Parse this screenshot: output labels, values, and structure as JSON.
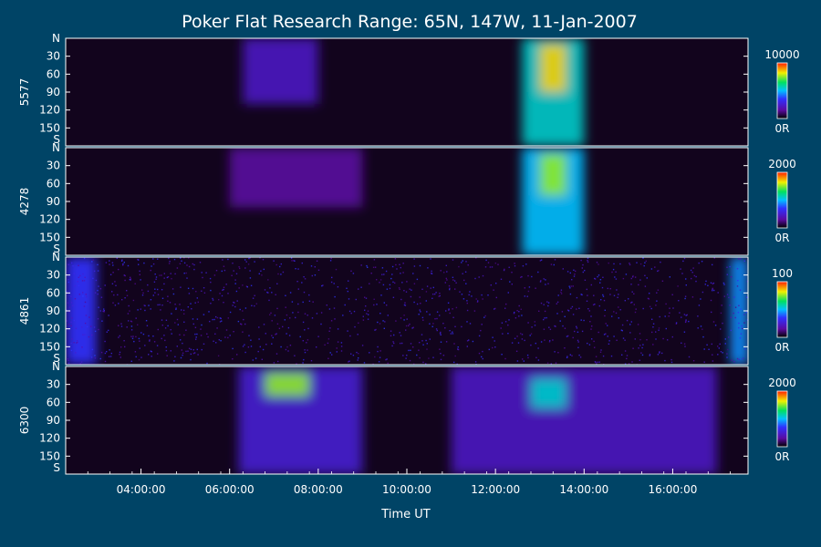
{
  "chart_data": {
    "type": "heatmap",
    "title": "Poker Flat Research Range: 65N, 147W, 11-Jan-2007",
    "xlabel": "Time UT",
    "x_ticks": [
      "04:00:00",
      "06:00:00",
      "08:00:00",
      "10:00:00",
      "12:00:00",
      "14:00:00",
      "16:00:00"
    ],
    "x_tick_hours": [
      4,
      6,
      8,
      10,
      12,
      14,
      16
    ],
    "xlim_hours": [
      2.3,
      17.7
    ],
    "y_ticks": [
      "N",
      "30",
      "60",
      "90",
      "120",
      "150",
      "S"
    ],
    "ylim_degrees": [
      0,
      180
    ],
    "panels": [
      {
        "ylabel": "5577",
        "colorbar_max": "10000",
        "colorbar_min": "0R",
        "aurora_events": [
          {
            "t_start": 6.3,
            "t_end": 8.0,
            "y_start": 0,
            "y_end": 110,
            "intensity": 0.22
          },
          {
            "t_start": 12.6,
            "t_end": 14.0,
            "y_start": 0,
            "y_end": 180,
            "intensity": 0.55
          },
          {
            "t_start": 13.0,
            "t_end": 13.6,
            "y_start": 10,
            "y_end": 90,
            "intensity": 0.85
          }
        ]
      },
      {
        "ylabel": "4278",
        "colorbar_max": "2000",
        "colorbar_min": "0R",
        "aurora_events": [
          {
            "t_start": 6.0,
            "t_end": 9.0,
            "y_start": 0,
            "y_end": 100,
            "intensity": 0.15
          },
          {
            "t_start": 12.6,
            "t_end": 14.0,
            "y_start": 0,
            "y_end": 180,
            "intensity": 0.5
          },
          {
            "t_start": 13.0,
            "t_end": 13.6,
            "y_start": 10,
            "y_end": 80,
            "intensity": 0.75
          }
        ]
      },
      {
        "ylabel": "4861",
        "colorbar_max": "100",
        "colorbar_min": "0R",
        "aurora_events": [
          {
            "t_start": 2.3,
            "t_end": 3.0,
            "y_start": 0,
            "y_end": 180,
            "intensity": 0.35
          },
          {
            "t_start": 17.3,
            "t_end": 17.7,
            "y_start": 0,
            "y_end": 180,
            "intensity": 0.45
          }
        ]
      },
      {
        "ylabel": "6300",
        "colorbar_max": "2000",
        "colorbar_min": "0R",
        "aurora_events": [
          {
            "t_start": 6.2,
            "t_end": 9.0,
            "y_start": 0,
            "y_end": 180,
            "intensity": 0.25
          },
          {
            "t_start": 6.8,
            "t_end": 7.8,
            "y_start": 10,
            "y_end": 50,
            "intensity": 0.75
          },
          {
            "t_start": 11.0,
            "t_end": 17.0,
            "y_start": 0,
            "y_end": 180,
            "intensity": 0.22
          },
          {
            "t_start": 12.8,
            "t_end": 13.6,
            "y_start": 20,
            "y_end": 70,
            "intensity": 0.55
          }
        ]
      }
    ],
    "grid": false,
    "colormap": "black-purple-blue-cyan-green-yellow-red"
  }
}
